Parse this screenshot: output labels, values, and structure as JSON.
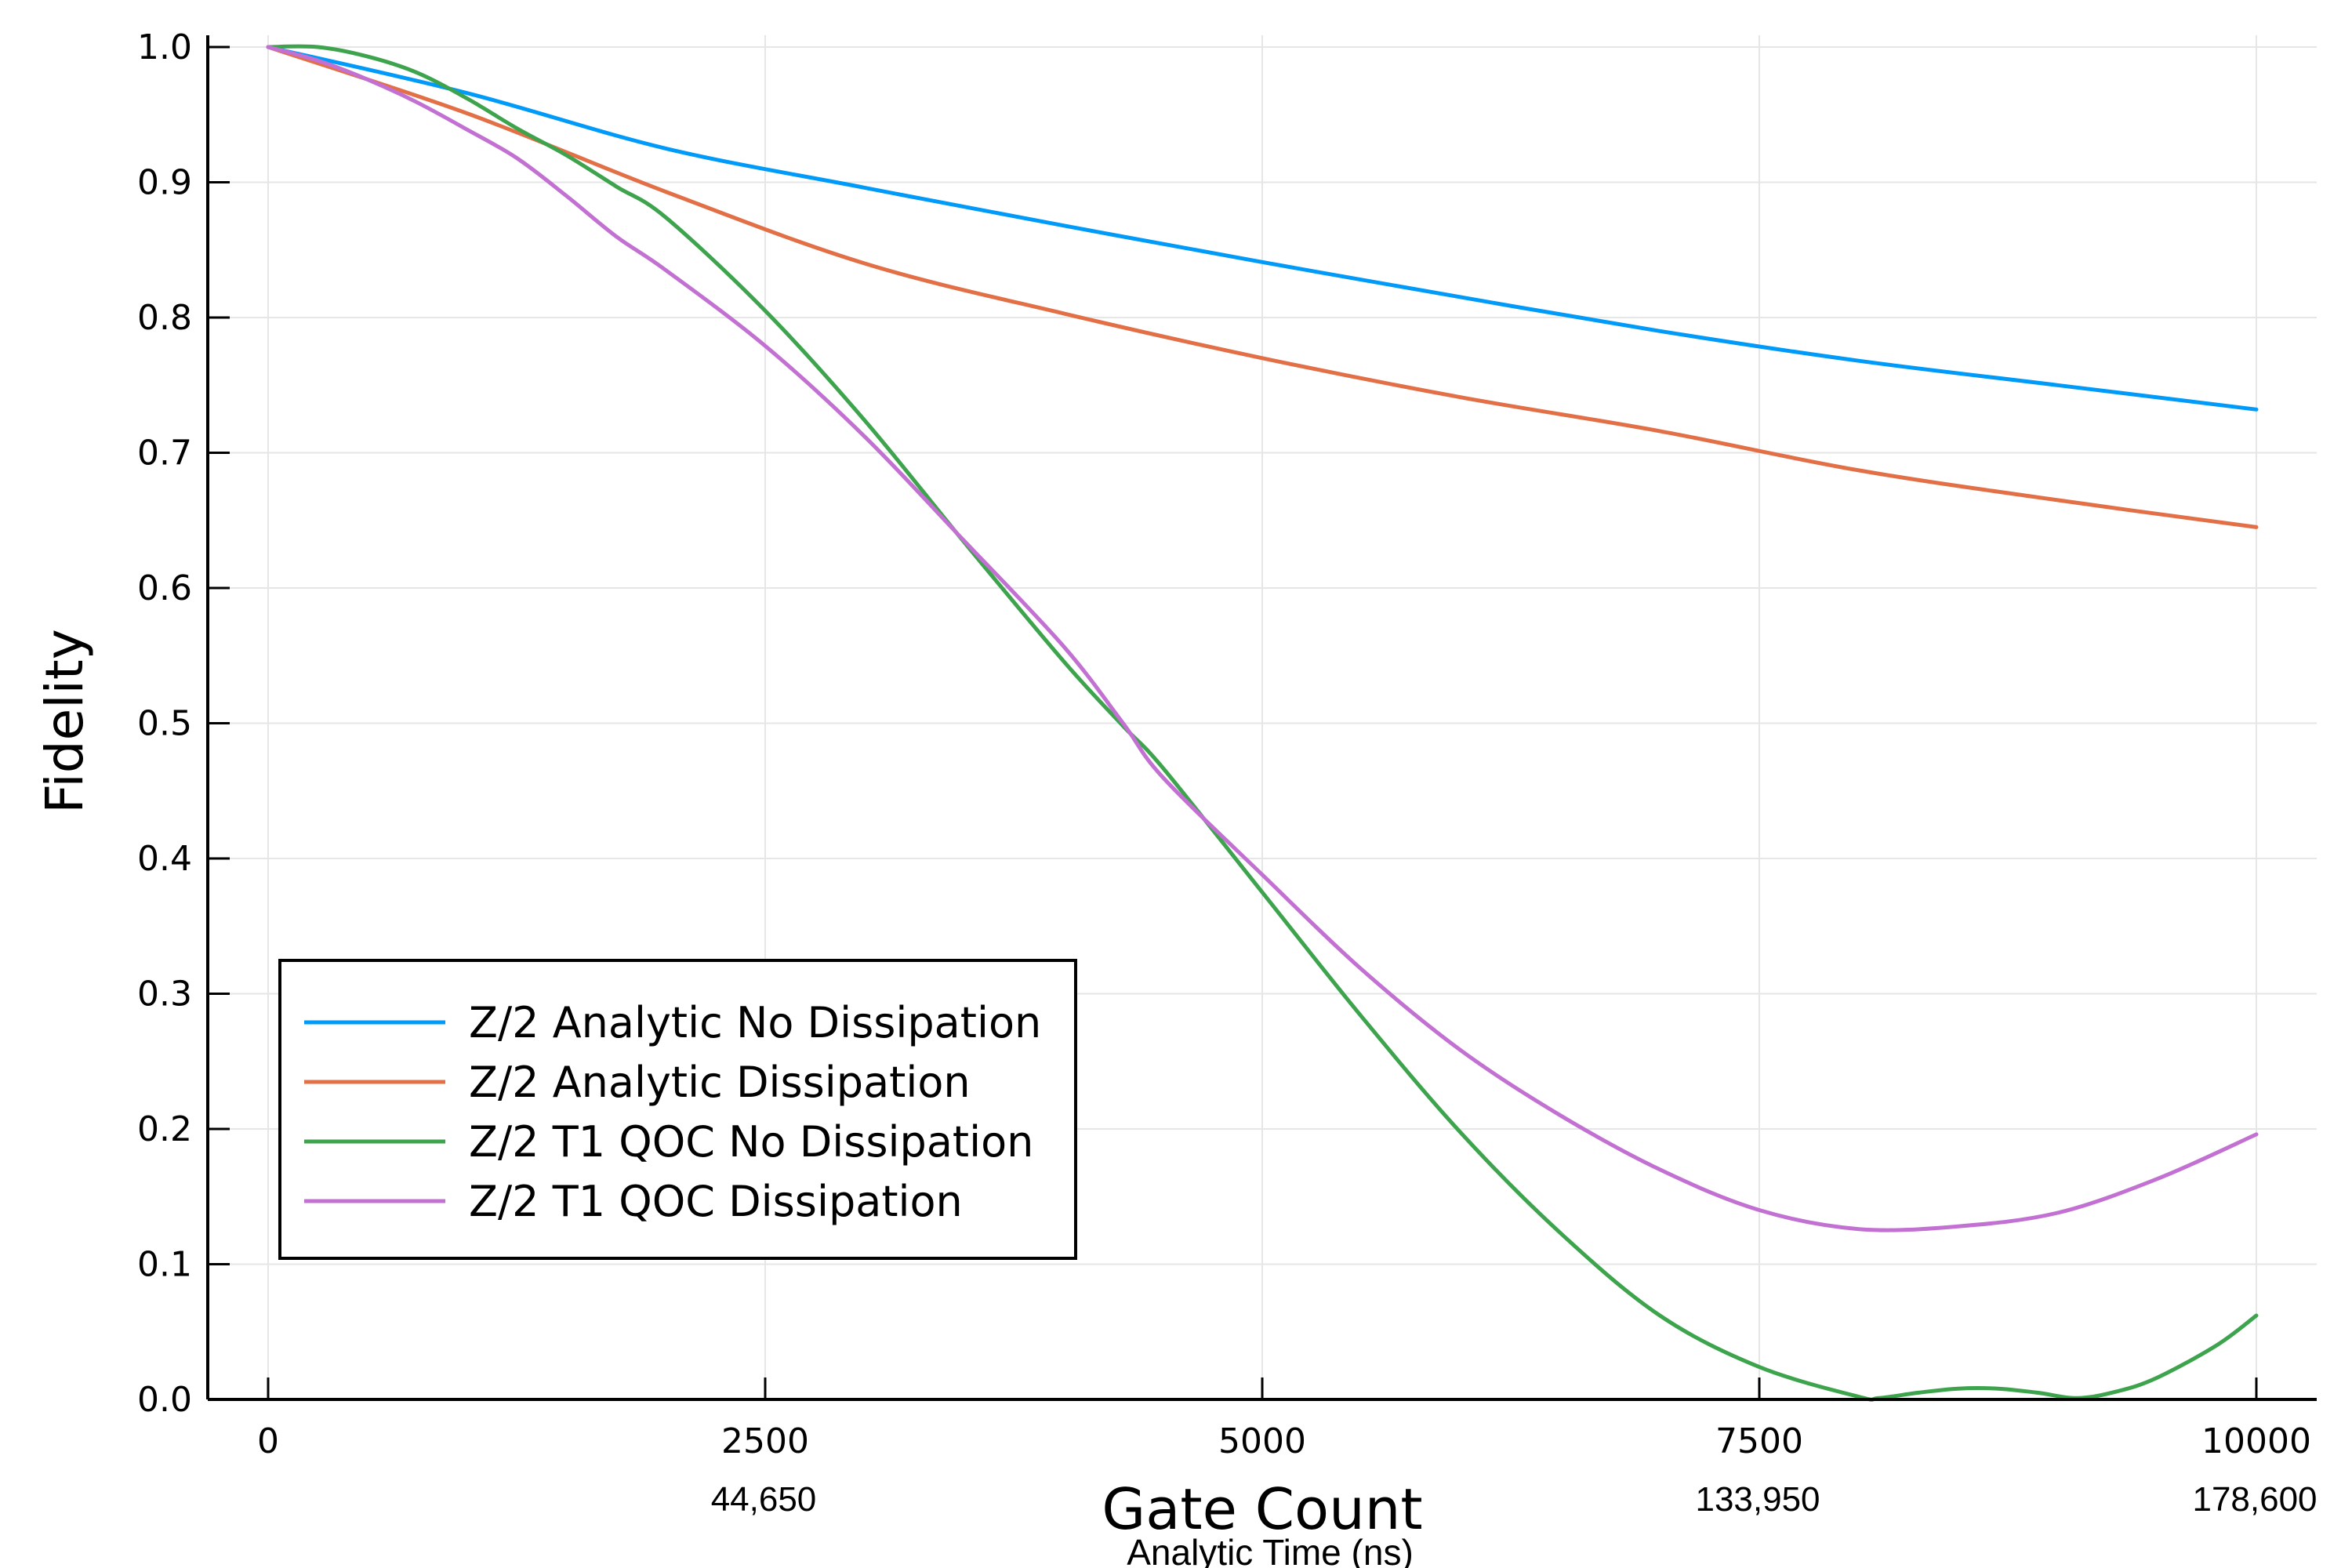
{
  "chart_data": {
    "type": "line",
    "title": "",
    "xlabel": "Gate Count",
    "ylabel": "Fidelity",
    "secondary_xlabel": "Analytic Time (ns)",
    "xlim": [
      0,
      10000
    ],
    "ylim": [
      0.0,
      1.0
    ],
    "grid": true,
    "legend_position": "bottom-left",
    "x_ticks": [
      {
        "value": 0,
        "label": "0"
      },
      {
        "value": 2500,
        "label": "2500"
      },
      {
        "value": 5000,
        "label": "5000"
      },
      {
        "value": 7500,
        "label": "7500"
      },
      {
        "value": 10000,
        "label": "10000"
      }
    ],
    "secondary_x_ticks": [
      {
        "value": 2500,
        "label": "44,650"
      },
      {
        "value": 7500,
        "label": "133,950"
      },
      {
        "value": 10000,
        "label": "178,600"
      }
    ],
    "y_ticks": [
      {
        "value": 0.0,
        "label": "0.0"
      },
      {
        "value": 0.1,
        "label": "0.1"
      },
      {
        "value": 0.2,
        "label": "0.2"
      },
      {
        "value": 0.3,
        "label": "0.3"
      },
      {
        "value": 0.4,
        "label": "0.4"
      },
      {
        "value": 0.5,
        "label": "0.5"
      },
      {
        "value": 0.6,
        "label": "0.6"
      },
      {
        "value": 0.7,
        "label": "0.7"
      },
      {
        "value": 0.8,
        "label": "0.8"
      },
      {
        "value": 0.9,
        "label": "0.9"
      },
      {
        "value": 1.0,
        "label": "1.0"
      }
    ],
    "series": [
      {
        "name": "Z/2 Analytic No Dissipation",
        "color": "#009af9",
        "x": [
          0,
          1000,
          2000,
          3000,
          4000,
          5000,
          6000,
          7000,
          8000,
          9000,
          10000
        ],
        "y": [
          1.0,
          0.966,
          0.925,
          0.896,
          0.868,
          0.841,
          0.815,
          0.79,
          0.768,
          0.75,
          0.732
        ]
      },
      {
        "name": "Z/2 Analytic Dissipation",
        "color": "#e26f46",
        "x": [
          0,
          1000,
          2000,
          3000,
          4000,
          5000,
          6000,
          7000,
          8000,
          9000,
          10000
        ],
        "y": [
          1.0,
          0.951,
          0.893,
          0.84,
          0.803,
          0.77,
          0.741,
          0.716,
          0.687,
          0.665,
          0.645
        ]
      },
      {
        "name": "Z/2 T1 QOC No Dissipation",
        "color": "#3da44d",
        "x": [
          0,
          250,
          500,
          750,
          1000,
          1250,
          1500,
          1750,
          2000,
          2500,
          3000,
          3500,
          4000,
          4300,
          4500,
          5000,
          5500,
          6000,
          6500,
          7000,
          7500,
          8000,
          8100,
          8300,
          8500,
          8700,
          8900,
          9100,
          9300,
          9500,
          9800,
          10000
        ],
        "y": [
          1.0,
          1.0,
          0.993,
          0.981,
          0.962,
          0.94,
          0.92,
          0.897,
          0.874,
          0.805,
          0.724,
          0.634,
          0.546,
          0.498,
          0.467,
          0.375,
          0.283,
          0.197,
          0.123,
          0.062,
          0.024,
          0.002,
          0.001,
          0.005,
          0.008,
          0.008,
          0.005,
          0.001,
          0.006,
          0.016,
          0.04,
          0.062
        ]
      },
      {
        "name": "Z/2 T1 QOC Dissipation",
        "color": "#c271d2",
        "x": [
          0,
          250,
          500,
          750,
          1000,
          1250,
          1500,
          1750,
          2000,
          2500,
          3000,
          3500,
          4000,
          4300,
          4500,
          5000,
          5500,
          6000,
          6500,
          7000,
          7500,
          8000,
          8500,
          9000,
          9500,
          10000
        ],
        "y": [
          1.0,
          0.99,
          0.976,
          0.959,
          0.939,
          0.918,
          0.89,
          0.86,
          0.835,
          0.779,
          0.712,
          0.635,
          0.557,
          0.5,
          0.46,
          0.388,
          0.318,
          0.258,
          0.21,
          0.17,
          0.14,
          0.126,
          0.128,
          0.138,
          0.163,
          0.196
        ]
      }
    ]
  }
}
